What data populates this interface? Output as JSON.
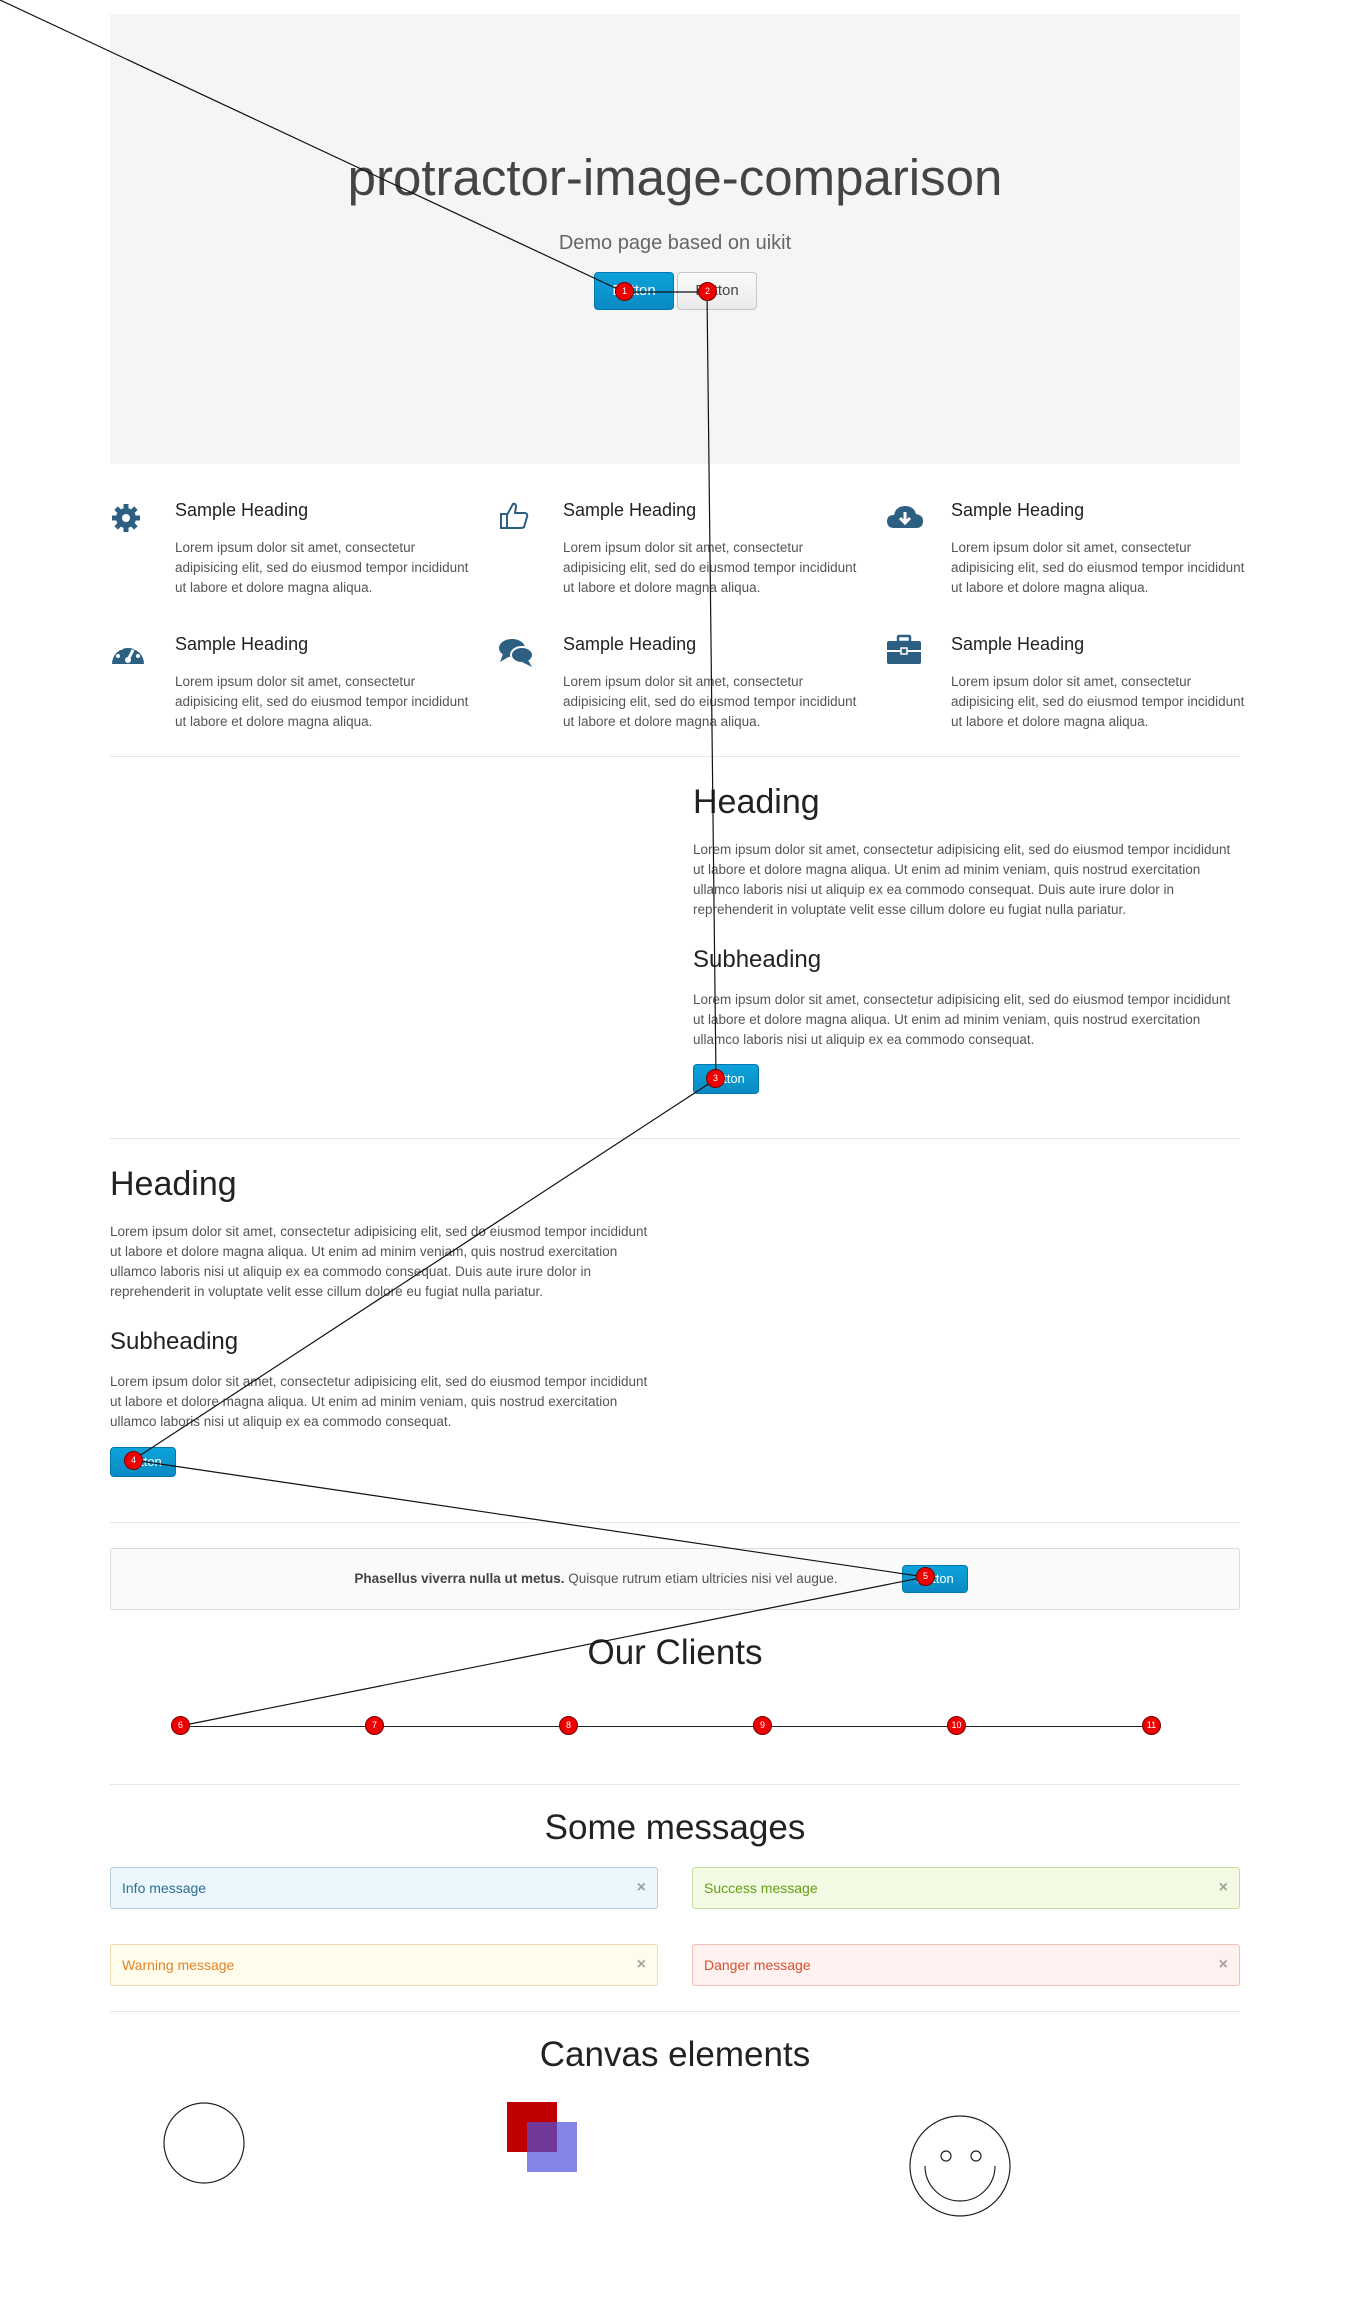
{
  "hero": {
    "title": "protractor-image-comparison",
    "subtitle": "Demo page based on uikit",
    "primary_button": "Button",
    "default_button": "Button"
  },
  "features": [
    {
      "icon": "gear-icon",
      "heading": "Sample Heading",
      "text": "Lorem ipsum dolor sit amet, consectetur adipisicing elit, sed do eiusmod tempor incididunt ut labore et dolore magna aliqua."
    },
    {
      "icon": "thumbs-up-icon",
      "heading": "Sample Heading",
      "text": "Lorem ipsum dolor sit amet, consectetur adipisicing elit, sed do eiusmod tempor incididunt ut labore et dolore magna aliqua."
    },
    {
      "icon": "cloud-download-icon",
      "heading": "Sample Heading",
      "text": "Lorem ipsum dolor sit amet, consectetur adipisicing elit, sed do eiusmod tempor incididunt ut labore et dolore magna aliqua."
    },
    {
      "icon": "dashboard-icon",
      "heading": "Sample Heading",
      "text": "Lorem ipsum dolor sit amet, consectetur adipisicing elit, sed do eiusmod tempor incididunt ut labore et dolore magna aliqua."
    },
    {
      "icon": "comments-icon",
      "heading": "Sample Heading",
      "text": "Lorem ipsum dolor sit amet, consectetur adipisicing elit, sed do eiusmod tempor incididunt ut labore et dolore magna aliqua."
    },
    {
      "icon": "briefcase-icon",
      "heading": "Sample Heading",
      "text": "Lorem ipsum dolor sit amet, consectetur adipisicing elit, sed do eiusmod tempor incididunt ut labore et dolore magna aliqua."
    }
  ],
  "block_right": {
    "heading": "Heading",
    "paragraph": "Lorem ipsum dolor sit amet, consectetur adipisicing elit, sed do eiusmod tempor incididunt ut labore et dolore magna aliqua. Ut enim ad minim veniam, quis nostrud exercitation ullamco laboris nisi ut aliquip ex ea commodo consequat. Duis aute irure dolor in reprehenderit in voluptate velit esse cillum dolore eu fugiat nulla pariatur.",
    "subheading": "Subheading",
    "paragraph2": "Lorem ipsum dolor sit amet, consectetur adipisicing elit, sed do eiusmod tempor incididunt ut labore et dolore magna aliqua. Ut enim ad minim veniam, quis nostrud exercitation ullamco laboris nisi ut aliquip ex ea commodo consequat.",
    "button": "Button"
  },
  "block_left": {
    "heading": "Heading",
    "paragraph": "Lorem ipsum dolor sit amet, consectetur adipisicing elit, sed do eiusmod tempor incididunt ut labore et dolore magna aliqua. Ut enim ad minim veniam, quis nostrud exercitation ullamco laboris nisi ut aliquip ex ea commodo consequat. Duis aute irure dolor in reprehenderit in voluptate velit esse cillum dolore eu fugiat nulla pariatur.",
    "subheading": "Subheading",
    "paragraph2": "Lorem ipsum dolor sit amet, consectetur adipisicing elit, sed do eiusmod tempor incididunt ut labore et dolore magna aliqua. Ut enim ad minim veniam, quis nostrud exercitation ullamco laboris nisi ut aliquip ex ea commodo consequat.",
    "button": "Button"
  },
  "panel": {
    "bold_text": "Phasellus viverra nulla ut metus.",
    "text": "Quisque rutrum etiam ultricies nisi vel augue.",
    "button": "Button"
  },
  "clients": {
    "title": "Our Clients"
  },
  "messages": {
    "title": "Some messages",
    "info": "Info message",
    "success": "Success message",
    "warning": "Warning message",
    "danger": "Danger message",
    "close": "×"
  },
  "canvas": {
    "title": "Canvas elements"
  },
  "markers": [
    "1",
    "2",
    "3",
    "4",
    "5",
    "6",
    "7",
    "8",
    "9",
    "10",
    "11"
  ],
  "colors": {
    "primary": "#0a8ac4",
    "marker": "#ee0000",
    "square_red": "#c00000",
    "square_blue": "#6464dc"
  }
}
